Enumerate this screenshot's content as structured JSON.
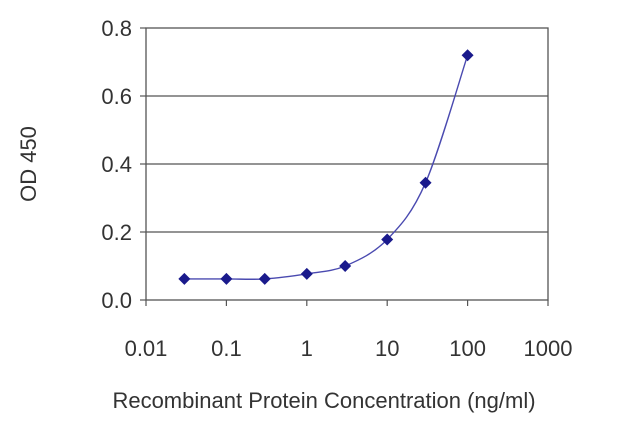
{
  "chart_data": {
    "type": "scatter",
    "xlabel": "Recombinant Protein Concentration (ng/ml)",
    "ylabel": "OD 450",
    "x_scale": "log",
    "xlim": [
      0.01,
      1000
    ],
    "ylim": [
      0,
      0.8
    ],
    "x_ticks": [
      "0.01",
      "0.1",
      "1",
      "10",
      "100",
      "1000"
    ],
    "y_ticks": [
      "0.0",
      "0.2",
      "0.4",
      "0.6",
      "0.8"
    ],
    "grid": "horizontal",
    "series": [
      {
        "x": [
          0.03,
          0.1,
          0.3,
          1,
          3,
          10,
          30,
          100
        ],
        "y": [
          0.062,
          0.062,
          0.062,
          0.077,
          0.1,
          0.178,
          0.345,
          0.72
        ],
        "marker": "diamond",
        "color": "#1a1a8c",
        "line": "smooth"
      }
    ]
  }
}
